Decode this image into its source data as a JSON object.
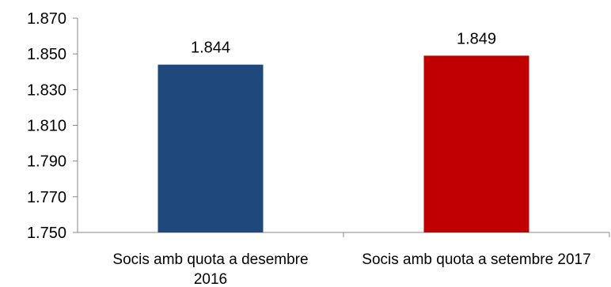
{
  "chart_data": {
    "type": "bar",
    "categories": [
      [
        "Socis amb quota a desembre",
        "2016"
      ],
      [
        "Socis amb quota a setembre 2017"
      ]
    ],
    "values": [
      1844,
      1849
    ],
    "data_labels": [
      "1.844",
      "1.849"
    ],
    "colors": [
      "#1f497d",
      "#c00000"
    ],
    "ylim": [
      1750,
      1870
    ],
    "yticks": [
      1750,
      1770,
      1790,
      1810,
      1830,
      1850,
      1870
    ],
    "ytick_labels": [
      "1.750",
      "1.770",
      "1.790",
      "1.810",
      "1.830",
      "1.850",
      "1.870"
    ],
    "grid": false,
    "legend": "none"
  }
}
